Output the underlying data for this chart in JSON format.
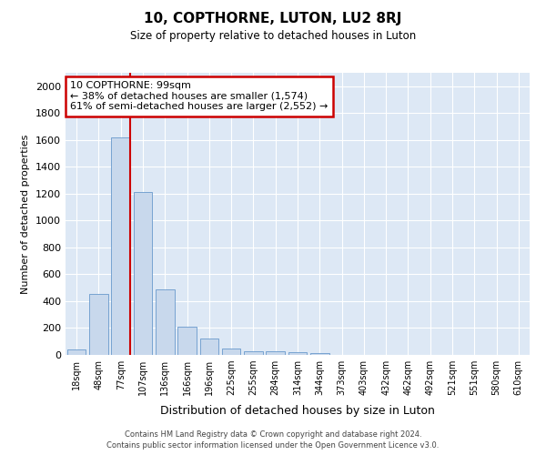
{
  "title": "10, COPTHORNE, LUTON, LU2 8RJ",
  "subtitle": "Size of property relative to detached houses in Luton",
  "xlabel": "Distribution of detached houses by size in Luton",
  "ylabel": "Number of detached properties",
  "bar_color": "#c8d8ec",
  "bar_edge_color": "#6899cc",
  "bg_color": "#dde8f5",
  "fig_bg_color": "#ffffff",
  "grid_color": "#ffffff",
  "categories": [
    "18sqm",
    "48sqm",
    "77sqm",
    "107sqm",
    "136sqm",
    "166sqm",
    "196sqm",
    "225sqm",
    "255sqm",
    "284sqm",
    "314sqm",
    "344sqm",
    "373sqm",
    "403sqm",
    "432sqm",
    "462sqm",
    "492sqm",
    "521sqm",
    "551sqm",
    "580sqm",
    "610sqm"
  ],
  "values": [
    40,
    455,
    1620,
    1210,
    490,
    210,
    120,
    45,
    30,
    25,
    20,
    15,
    0,
    0,
    0,
    0,
    0,
    0,
    0,
    0,
    0
  ],
  "ylim": [
    0,
    2100
  ],
  "yticks": [
    0,
    200,
    400,
    600,
    800,
    1000,
    1200,
    1400,
    1600,
    1800,
    2000
  ],
  "red_line_index": 2,
  "annotation_title": "10 COPTHORNE: 99sqm",
  "annotation_line1": "← 38% of detached houses are smaller (1,574)",
  "annotation_line2": "61% of semi-detached houses are larger (2,552) →",
  "annotation_box_color": "#ffffff",
  "annotation_box_edge": "#cc0000",
  "red_line_color": "#cc0000",
  "footer_line1": "Contains HM Land Registry data © Crown copyright and database right 2024.",
  "footer_line2": "Contains public sector information licensed under the Open Government Licence v3.0."
}
